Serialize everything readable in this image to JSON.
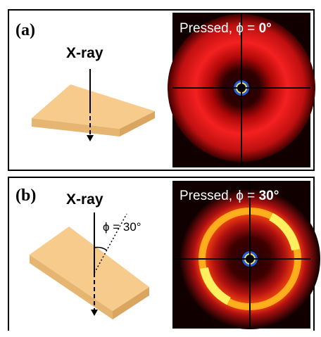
{
  "panels": [
    {
      "label": "(a)",
      "beam_label": "X-ray",
      "pattern_title": "Pressed, ϕ = ",
      "pattern_angle": "0°"
    },
    {
      "label": "(b)",
      "beam_label": "X-ray",
      "tilt_label": "ϕ = 30°",
      "pattern_title": "Pressed, ϕ = ",
      "pattern_angle": "30°"
    }
  ]
}
